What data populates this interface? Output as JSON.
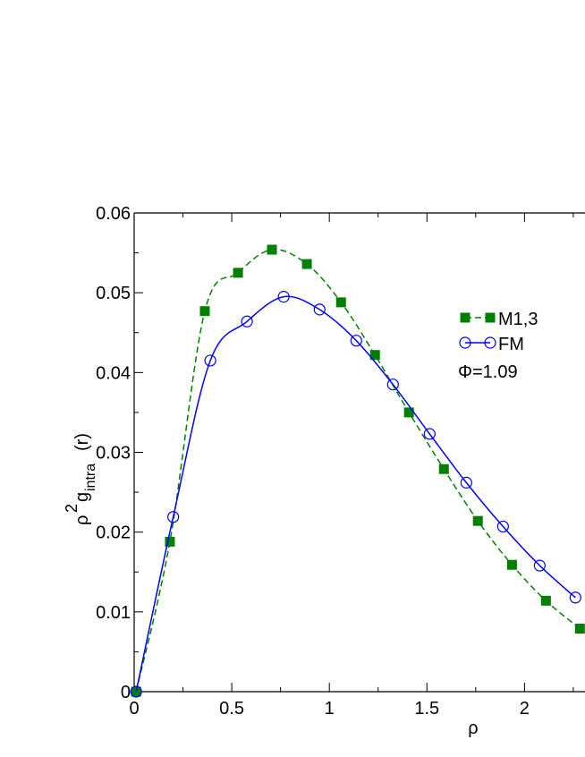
{
  "chart_data": {
    "type": "line",
    "xlabel": "ρ",
    "ylabel": {
      "base": "ρ",
      "sup": "2",
      "main": "g",
      "sub": "intra",
      "tail": "(r)"
    },
    "annotation": "Φ=1.09",
    "xlim": [
      0,
      2.31
    ],
    "ylim": [
      0,
      0.06
    ],
    "xticks": [
      0,
      0.5,
      1,
      1.5,
      2
    ],
    "yticks": [
      0,
      0.01,
      0.02,
      0.03,
      0.04,
      0.05,
      0.06
    ],
    "series": [
      {
        "name": "M1,3",
        "color": "#008000",
        "marker": "square",
        "dash": true,
        "x": [
          0.01,
          0.183,
          0.362,
          0.532,
          0.706,
          0.885,
          1.06,
          1.234,
          1.408,
          1.587,
          1.761,
          1.936,
          2.11,
          2.284
        ],
        "values": [
          0,
          0.0188,
          0.0477,
          0.0525,
          0.0554,
          0.0536,
          0.0488,
          0.0422,
          0.035,
          0.0279,
          0.0214,
          0.0159,
          0.0114,
          0.0079
        ]
      },
      {
        "name": "FM",
        "color": "#0000ff",
        "marker": "circle",
        "dash": false,
        "x": [
          0.01,
          0.2,
          0.39,
          0.578,
          0.766,
          0.95,
          1.138,
          1.326,
          1.514,
          1.702,
          1.89,
          2.078,
          2.261
        ],
        "values": [
          0,
          0.0219,
          0.0415,
          0.0464,
          0.0495,
          0.0479,
          0.044,
          0.0385,
          0.0323,
          0.0262,
          0.0207,
          0.0158,
          0.0118
        ]
      }
    ]
  }
}
